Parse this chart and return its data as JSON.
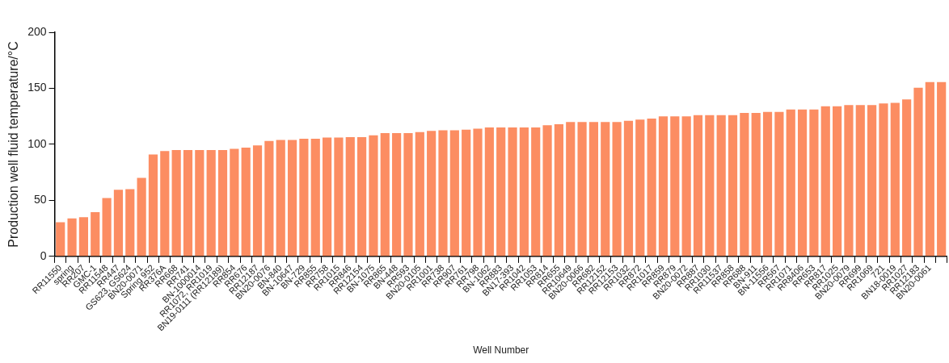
{
  "chart_data": {
    "type": "bar",
    "xlabel": "Well Number",
    "ylabel": "Production well fluid temperature/°C",
    "categories": [
      "RR11550",
      "spring",
      "RR207",
      "GMC-1",
      "RR11548",
      "RR447",
      "GS623, GS624",
      "BN20-0071",
      "Spring 952",
      "RR376A",
      "RR668",
      "RR741",
      "BN-1000014",
      "RR1072, RR1019",
      "BN19-0111 (RR12189)",
      "RR854",
      "RR676",
      "RR12187",
      "BN20-0076",
      "BN-840",
      "BN-10647",
      "BN-729",
      "RR855",
      "RR758",
      "RR1015",
      "RR846",
      "RR12154",
      "BN-1075",
      "RR865",
      "BN-448",
      "RR593",
      "BN20-0105",
      "RR1001",
      "RR738",
      "RR907",
      "RR761",
      "RR798",
      "BN-1062",
      "RR883",
      "BN17-393",
      "RR1042",
      "RR1053",
      "RR814",
      "RR655",
      "RR10649",
      "BN20-0066",
      "RR682",
      "RR12152",
      "RR12153",
      "RR1032",
      "RR872",
      "RR1017",
      "RR859",
      "RR879",
      "BN20-0072",
      "RR887",
      "RR1030",
      "RR11537",
      "RR858",
      "RR688",
      "BN-911",
      "BN-11556",
      "RR567",
      "RR1071",
      "RR8406",
      "RR653",
      "RR817",
      "RR1025",
      "BN20-0079",
      "RR699",
      "RR1069",
      "721",
      "BN18-0019",
      "RR1027",
      "RR12183",
      "BN20-0061",
      null
    ],
    "values": [
      30.5,
      34,
      35,
      39.5,
      52,
      59.5,
      60,
      70,
      91,
      94,
      95,
      95,
      95,
      95,
      95,
      96,
      97,
      99,
      103,
      104,
      104,
      105,
      105,
      106,
      106,
      106.5,
      106.5,
      108,
      110,
      110,
      110,
      111,
      112,
      112.5,
      112.5,
      113,
      114,
      115,
      115,
      115,
      115,
      115,
      117,
      118,
      120,
      120,
      120,
      120,
      120,
      121,
      122,
      123,
      125,
      125,
      125,
      126,
      126,
      126,
      126,
      128,
      128,
      129,
      129,
      131,
      131,
      131,
      134,
      134,
      135,
      135,
      135,
      136.5,
      137,
      140,
      150.5,
      155.5,
      155.5
    ],
    "color": "#fc8d62",
    "ylim": [
      0,
      200
    ],
    "yticks": [
      0,
      50,
      100,
      150,
      200
    ],
    "grid": false,
    "legend": false
  }
}
